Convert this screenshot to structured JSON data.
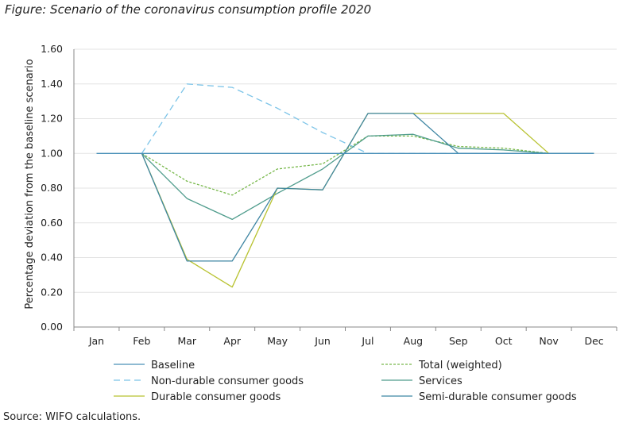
{
  "figure_title": "Figure: Scenario of the coronavirus consumption profile 2020",
  "source": "Source: WIFO calculations.",
  "chart_data": {
    "type": "line",
    "title": "",
    "xlabel": "",
    "ylabel": "Percentage deviation from the baseline scenario",
    "categories": [
      "Jan",
      "Feb",
      "Mar",
      "Apr",
      "May",
      "Jun",
      "Jul",
      "Aug",
      "Sep",
      "Oct",
      "Nov",
      "Dec"
    ],
    "ylim": [
      0,
      1.6
    ],
    "yticks": [
      "0.00",
      "0.20",
      "0.40",
      "0.60",
      "0.80",
      "1.00",
      "1.20",
      "1.40",
      "1.60"
    ],
    "grid": true,
    "legend_position": "bottom",
    "series": [
      {
        "name": "Baseline",
        "color": "#4a90b8",
        "dash": "",
        "values": [
          1.0,
          1.0,
          1.0,
          1.0,
          1.0,
          1.0,
          1.0,
          1.0,
          1.0,
          1.0,
          1.0,
          1.0
        ]
      },
      {
        "name": "Total (weighted)",
        "color": "#77b84a",
        "dash": "3,2",
        "values": [
          null,
          1.0,
          0.84,
          0.76,
          0.91,
          0.94,
          1.1,
          1.1,
          1.04,
          1.03,
          1.0,
          1.0
        ]
      },
      {
        "name": "Non-durable consumer goods",
        "color": "#7cc4e8",
        "dash": "8,5",
        "values": [
          null,
          1.0,
          1.4,
          1.38,
          1.26,
          1.12,
          1.0,
          1.0,
          1.0,
          1.0,
          1.0,
          1.0
        ]
      },
      {
        "name": "Services",
        "color": "#4f9c8c",
        "dash": "",
        "values": [
          null,
          1.0,
          0.74,
          0.62,
          0.77,
          0.91,
          1.1,
          1.11,
          1.03,
          1.02,
          1.0,
          1.0
        ]
      },
      {
        "name": "Durable consumer goods",
        "color": "#b8c230",
        "dash": "",
        "values": [
          null,
          1.0,
          0.39,
          0.23,
          0.8,
          0.79,
          1.23,
          1.23,
          1.23,
          1.23,
          1.0,
          1.0
        ]
      },
      {
        "name": "Semi-durable consumer goods",
        "color": "#3f86a3",
        "dash": "",
        "values": [
          null,
          1.0,
          0.38,
          0.38,
          0.8,
          0.79,
          1.23,
          1.23,
          1.0,
          1.0,
          1.0,
          1.0
        ]
      }
    ]
  }
}
